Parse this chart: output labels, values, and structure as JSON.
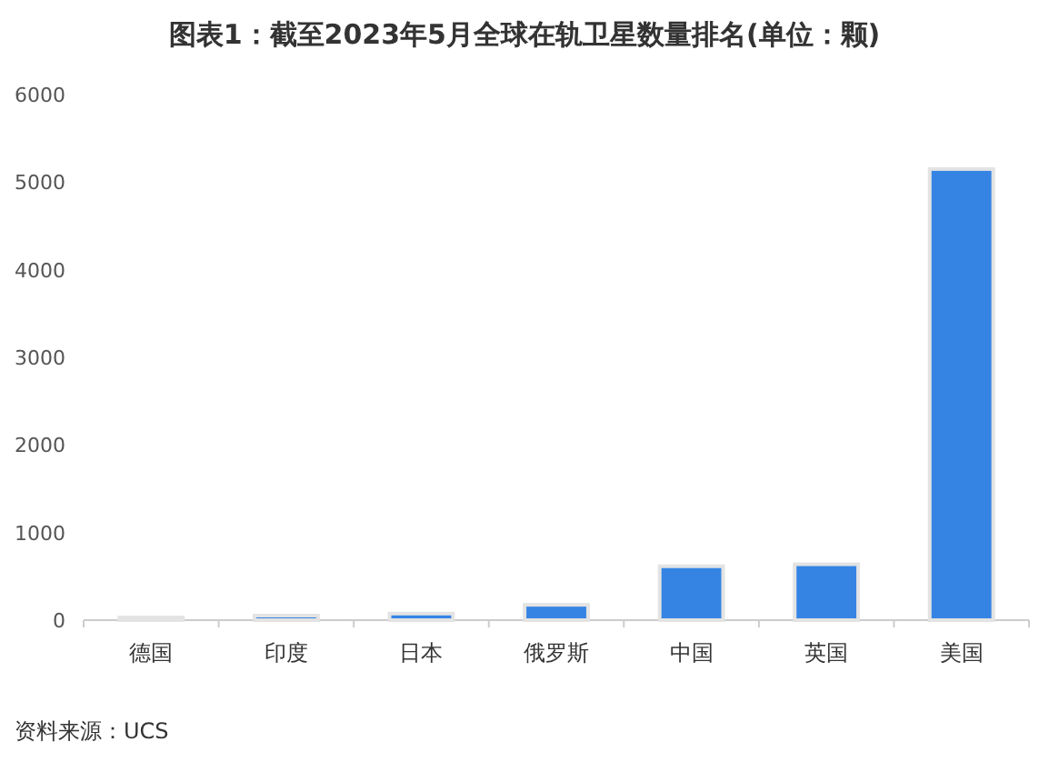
{
  "chart_data": {
    "type": "bar",
    "title": "图表1：截至2023年5月全球在轨卫星数量排名(单位：颗)",
    "categories": [
      "德国",
      "印度",
      "日本",
      "俄罗斯",
      "中国",
      "英国",
      "美国"
    ],
    "values": [
      30,
      52,
      75,
      175,
      615,
      638,
      5150
    ],
    "color": "#3584e4",
    "ylim": [
      0,
      6000
    ],
    "yticks": [
      0,
      1000,
      2000,
      3000,
      4000,
      5000,
      6000
    ],
    "grid": false,
    "annotations": [
      "资料来源：UCS"
    ]
  }
}
